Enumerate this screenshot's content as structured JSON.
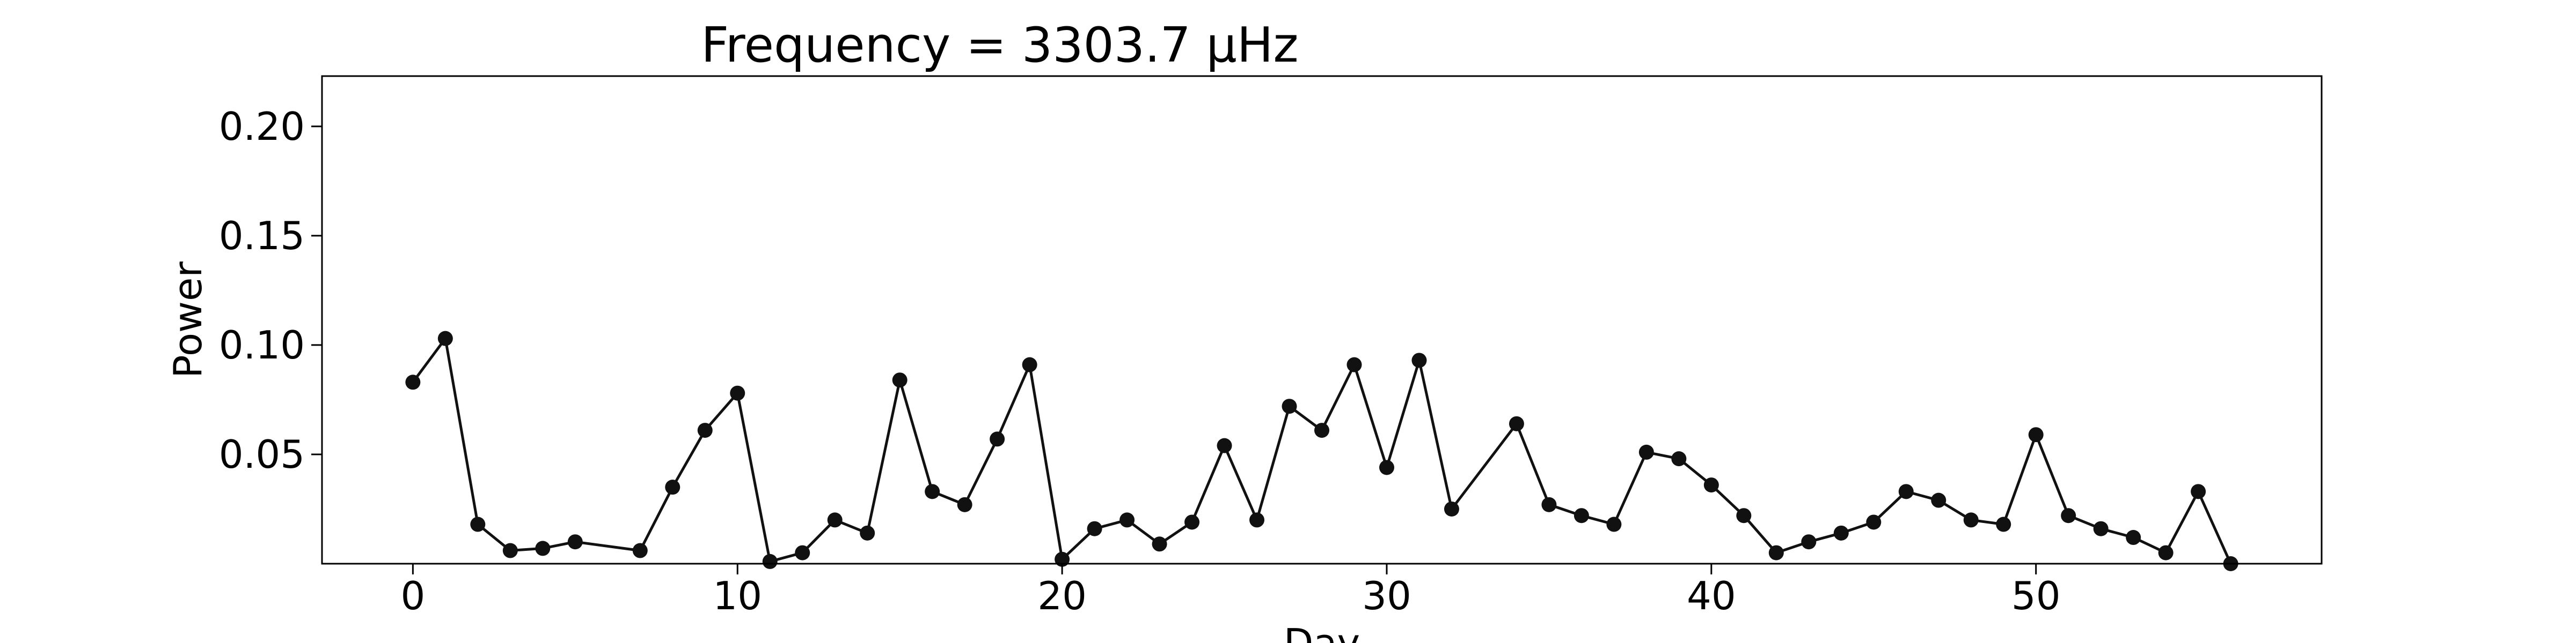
{
  "chart_data": {
    "type": "line",
    "title": "Frequency = 3303.7 μHz",
    "xlabel": "Day",
    "ylabel": "Power",
    "xlim": [
      -2.8,
      58.8
    ],
    "ylim": [
      0.0,
      0.223
    ],
    "x_ticks": [
      0,
      10,
      20,
      30,
      40,
      50
    ],
    "y_ticks": [
      0.05,
      0.1,
      0.15,
      0.2
    ],
    "y_tick_labels": [
      "0.05",
      "0.10",
      "0.15",
      "0.20"
    ],
    "grid": false,
    "line_color": "#111111",
    "marker": "circle",
    "series": [
      {
        "x": [
          0,
          1,
          2,
          3,
          4,
          5,
          7,
          8,
          9,
          10,
          11,
          12,
          13,
          14,
          15,
          16,
          17,
          18,
          19,
          20,
          21,
          22,
          23,
          24,
          25,
          26,
          27,
          28,
          29,
          30,
          31,
          32,
          34,
          35,
          36,
          37,
          38,
          39,
          40,
          41,
          42,
          43,
          44,
          45,
          46,
          47,
          48,
          49,
          50,
          51,
          52,
          53,
          54,
          55,
          56
        ],
        "y": [
          0.083,
          0.103,
          0.018,
          0.006,
          0.007,
          0.01,
          0.006,
          0.035,
          0.061,
          0.078,
          0.001,
          0.005,
          0.02,
          0.014,
          0.084,
          0.033,
          0.027,
          0.057,
          0.091,
          0.002,
          0.016,
          0.02,
          0.009,
          0.019,
          0.054,
          0.02,
          0.072,
          0.061,
          0.091,
          0.044,
          0.093,
          0.025,
          0.064,
          0.027,
          0.022,
          0.018,
          0.051,
          0.048,
          0.036,
          0.022,
          0.005,
          0.01,
          0.014,
          0.019,
          0.033,
          0.029,
          0.02,
          0.018,
          0.059,
          0.022,
          0.016,
          0.012,
          0.005,
          0.033,
          0.0
        ]
      }
    ]
  }
}
